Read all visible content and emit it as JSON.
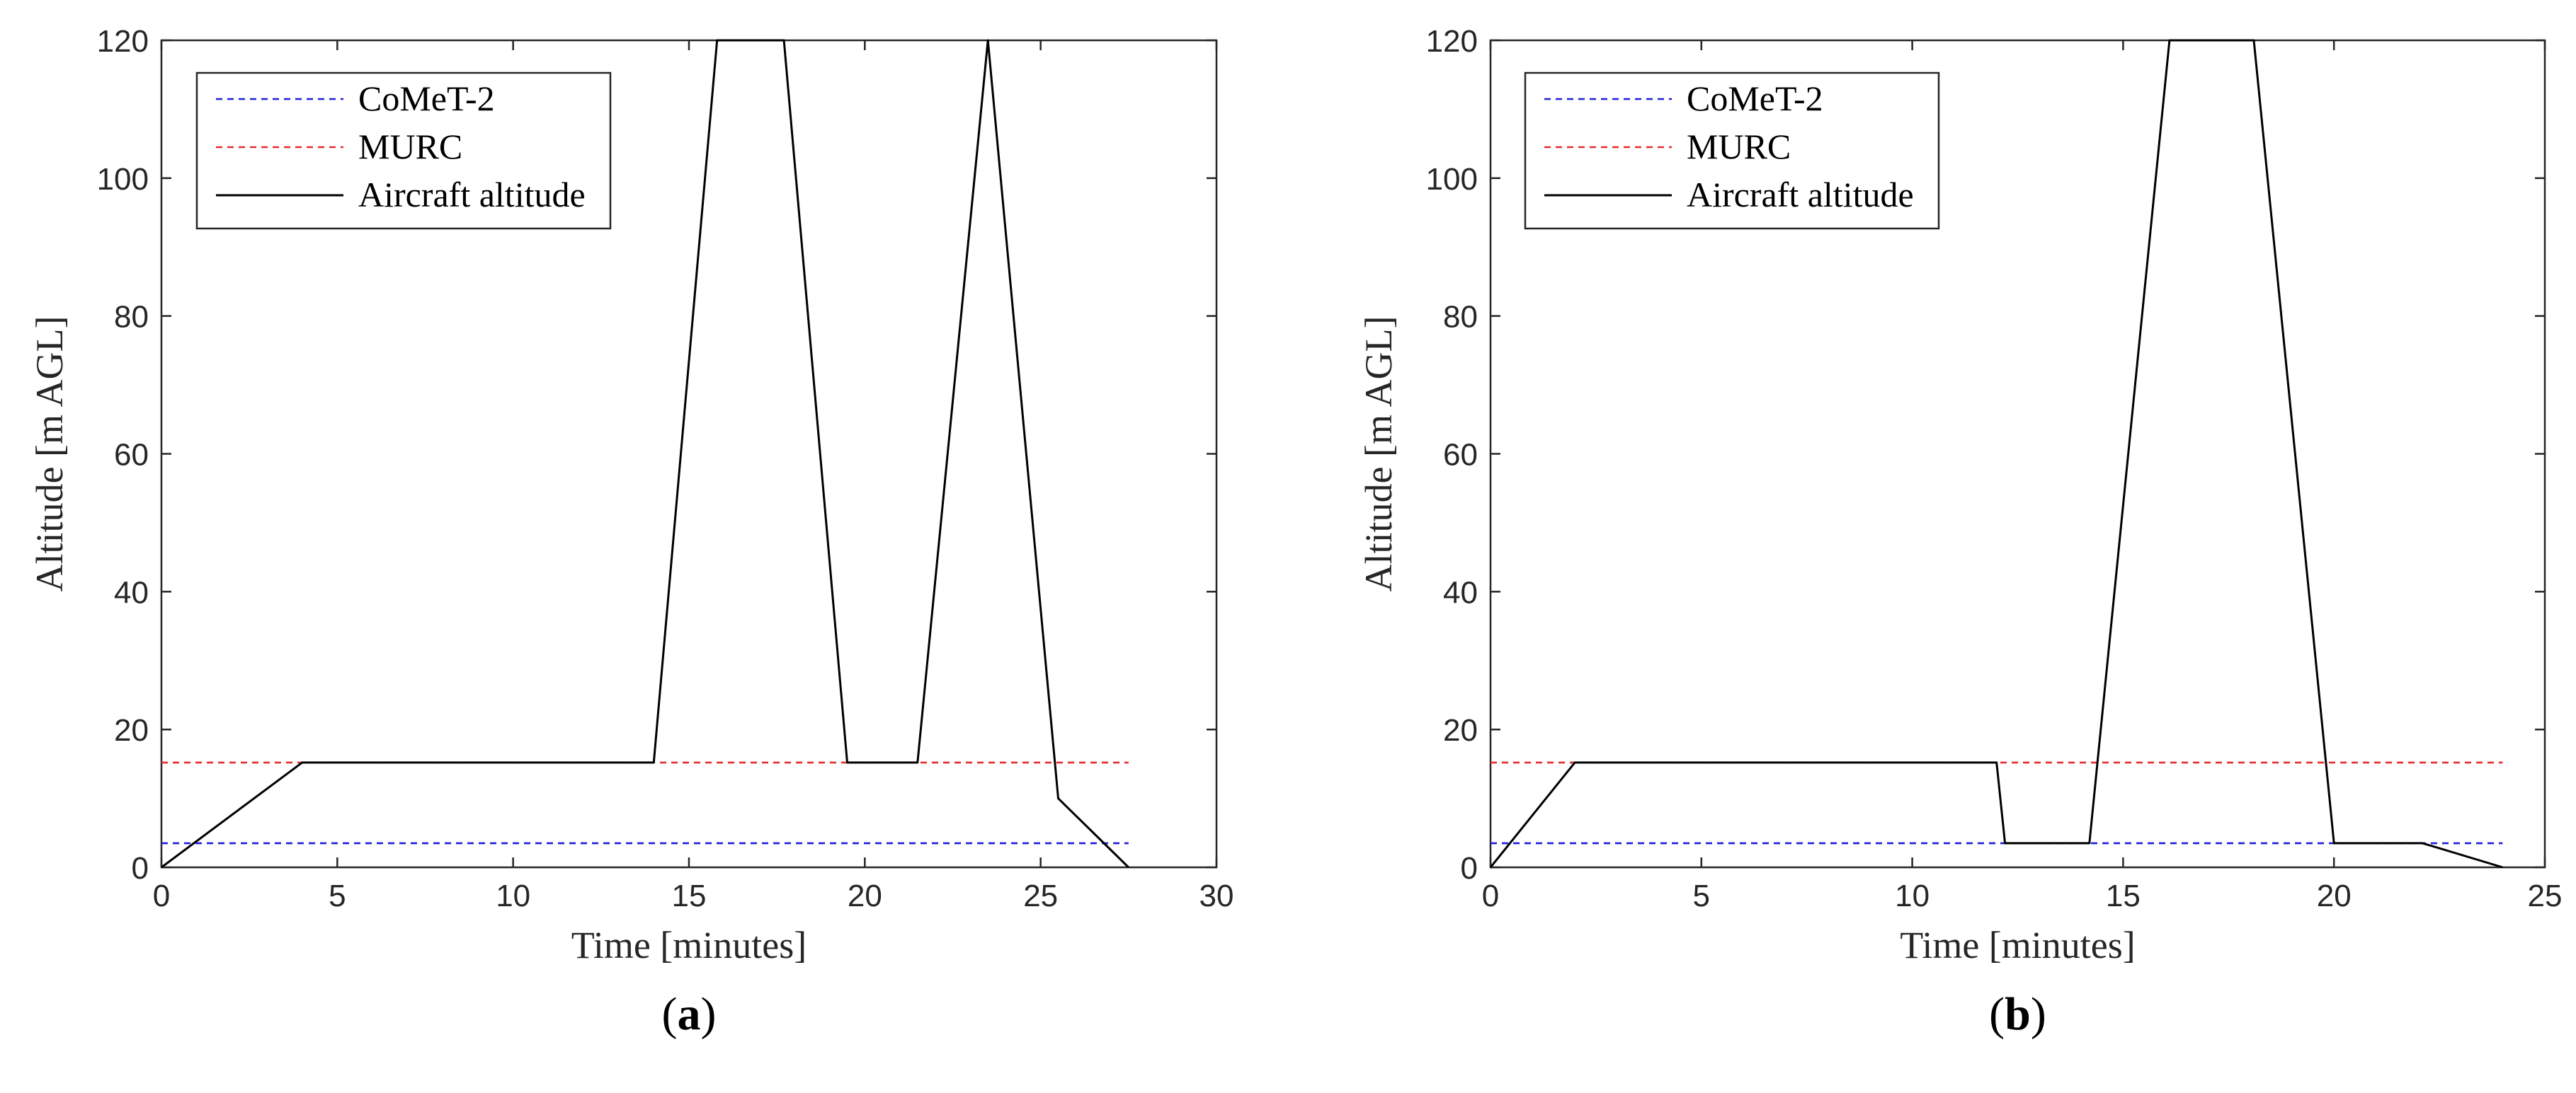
{
  "chart_data": [
    {
      "type": "line",
      "panel_label": {
        "open": "(",
        "letter": "a",
        "close": ")"
      },
      "xlabel": "Time [minutes]",
      "ylabel": "Altitude [m AGL]",
      "xlim": [
        0,
        30
      ],
      "ylim": [
        0,
        120
      ],
      "xticks": [
        0,
        5,
        10,
        15,
        20,
        25,
        30
      ],
      "yticks": [
        0,
        20,
        40,
        60,
        80,
        100,
        120
      ],
      "grid": false,
      "legend_position": "top-left",
      "series": [
        {
          "name": "CoMeT-2",
          "style": "dashed",
          "color": "#1f1fdb",
          "x": [
            0,
            27.5
          ],
          "y": [
            3.5,
            3.5
          ]
        },
        {
          "name": "MURC",
          "style": "dashed",
          "color": "#e52b2b",
          "x": [
            0,
            27.5
          ],
          "y": [
            15.2,
            15.2
          ]
        },
        {
          "name": "Aircraft altitude",
          "style": "solid",
          "color": "#000000",
          "x": [
            0,
            4,
            14,
            15.8,
            17.7,
            19.5,
            21.5,
            23.5,
            25.5,
            27.5
          ],
          "y": [
            0,
            15.2,
            15.2,
            120,
            120,
            15.2,
            15.2,
            120,
            10,
            0
          ]
        }
      ]
    },
    {
      "type": "line",
      "panel_label": {
        "open": "(",
        "letter": "b",
        "close": ")"
      },
      "xlabel": "Time [minutes]",
      "ylabel": "Altitude [m AGL]",
      "xlim": [
        0,
        25
      ],
      "ylim": [
        0,
        120
      ],
      "xticks": [
        0,
        5,
        10,
        15,
        20,
        25
      ],
      "yticks": [
        0,
        20,
        40,
        60,
        80,
        100,
        120
      ],
      "grid": false,
      "legend_position": "top-left",
      "series": [
        {
          "name": "CoMeT-2",
          "style": "dashed",
          "color": "#1f1fdb",
          "x": [
            0,
            24
          ],
          "y": [
            3.5,
            3.5
          ]
        },
        {
          "name": "MURC",
          "style": "dashed",
          "color": "#e52b2b",
          "x": [
            0,
            24
          ],
          "y": [
            15.2,
            15.2
          ]
        },
        {
          "name": "Aircraft altitude",
          "style": "solid",
          "color": "#000000",
          "x": [
            0,
            2,
            12,
            12.2,
            14.2,
            16.1,
            18.1,
            20,
            22.1,
            24
          ],
          "y": [
            0,
            15.2,
            15.2,
            3.5,
            3.5,
            120,
            120,
            3.5,
            3.5,
            0
          ]
        }
      ]
    }
  ]
}
